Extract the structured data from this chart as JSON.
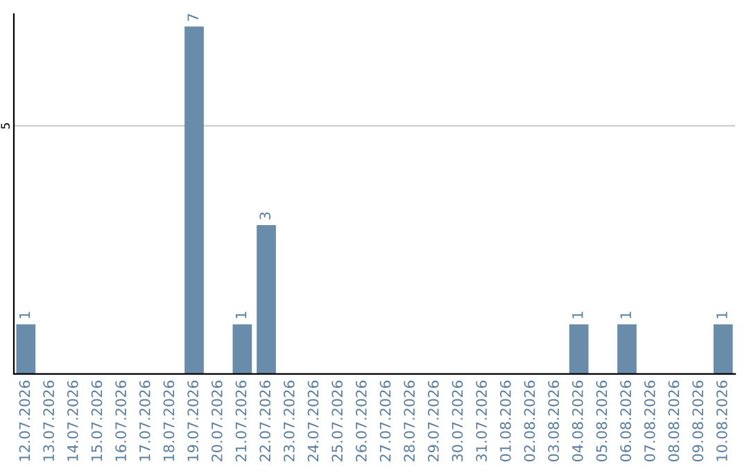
{
  "chart_data": {
    "type": "bar",
    "categories": [
      "12.07.2026",
      "13.07.2026",
      "14.07.2026",
      "15.07.2026",
      "16.07.2026",
      "17.07.2026",
      "18.07.2026",
      "19.07.2026",
      "20.07.2026",
      "21.07.2026",
      "22.07.2026",
      "23.07.2026",
      "24.07.2026",
      "25.07.2026",
      "26.07.2026",
      "27.07.2026",
      "28.07.2026",
      "29.07.2026",
      "30.07.2026",
      "31.07.2026",
      "01.08.2026",
      "02.08.2026",
      "03.08.2026",
      "04.08.2026",
      "05.08.2026",
      "06.08.2026",
      "07.08.2026",
      "08.08.2026",
      "09.08.2026",
      "10.08.2026"
    ],
    "values": [
      1,
      0,
      0,
      0,
      0,
      0,
      0,
      7,
      0,
      1,
      3,
      0,
      0,
      0,
      0,
      0,
      0,
      0,
      0,
      0,
      0,
      0,
      0,
      1,
      0,
      1,
      0,
      0,
      0,
      1
    ],
    "value_labels": [
      "1",
      null,
      null,
      null,
      null,
      null,
      null,
      "7",
      null,
      "1",
      "3",
      null,
      null,
      null,
      null,
      null,
      null,
      null,
      null,
      null,
      null,
      null,
      null,
      "1",
      null,
      "1",
      null,
      null,
      null,
      "1"
    ],
    "color": "#6a8cab",
    "ylim": [
      0,
      7.25
    ],
    "yticks": [
      5
    ],
    "grid": "y"
  }
}
